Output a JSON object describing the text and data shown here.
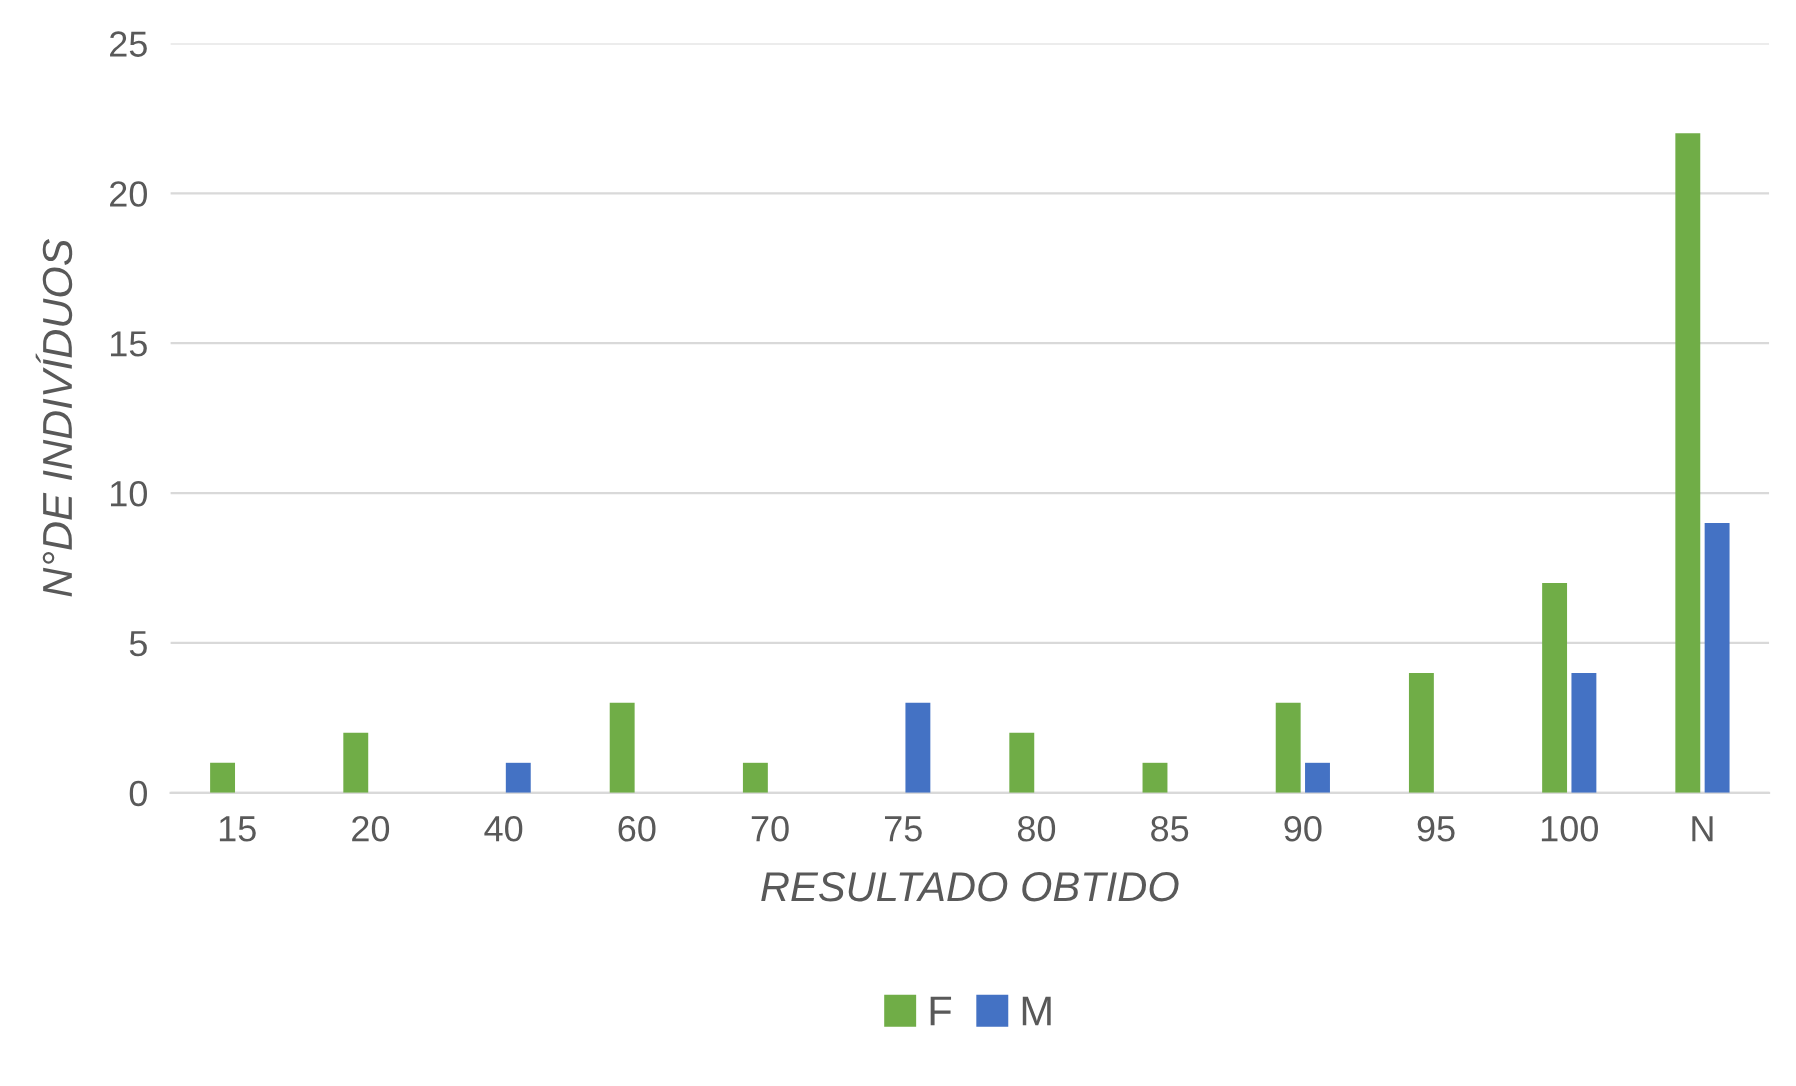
{
  "chart_data": {
    "type": "bar",
    "xlabel": "RESULTADO OBTIDO",
    "ylabel": "N°DE INDIVÍDUOS",
    "categories": [
      "15",
      "20",
      "40",
      "60",
      "70",
      "75",
      "80",
      "85",
      "90",
      "95",
      "100",
      "N"
    ],
    "series": [
      {
        "name": "F",
        "color": "#70ad47",
        "values": [
          1,
          2,
          0,
          3,
          1,
          0,
          2,
          1,
          3,
          4,
          7,
          22
        ]
      },
      {
        "name": "M",
        "color": "#4472c4",
        "values": [
          0,
          0,
          1,
          0,
          0,
          3,
          0,
          0,
          1,
          0,
          4,
          9
        ]
      }
    ],
    "ylim": [
      0,
      25
    ],
    "yticks": [
      0,
      5,
      10,
      15,
      20,
      25
    ],
    "grid": "y",
    "legend": "bottom"
  }
}
